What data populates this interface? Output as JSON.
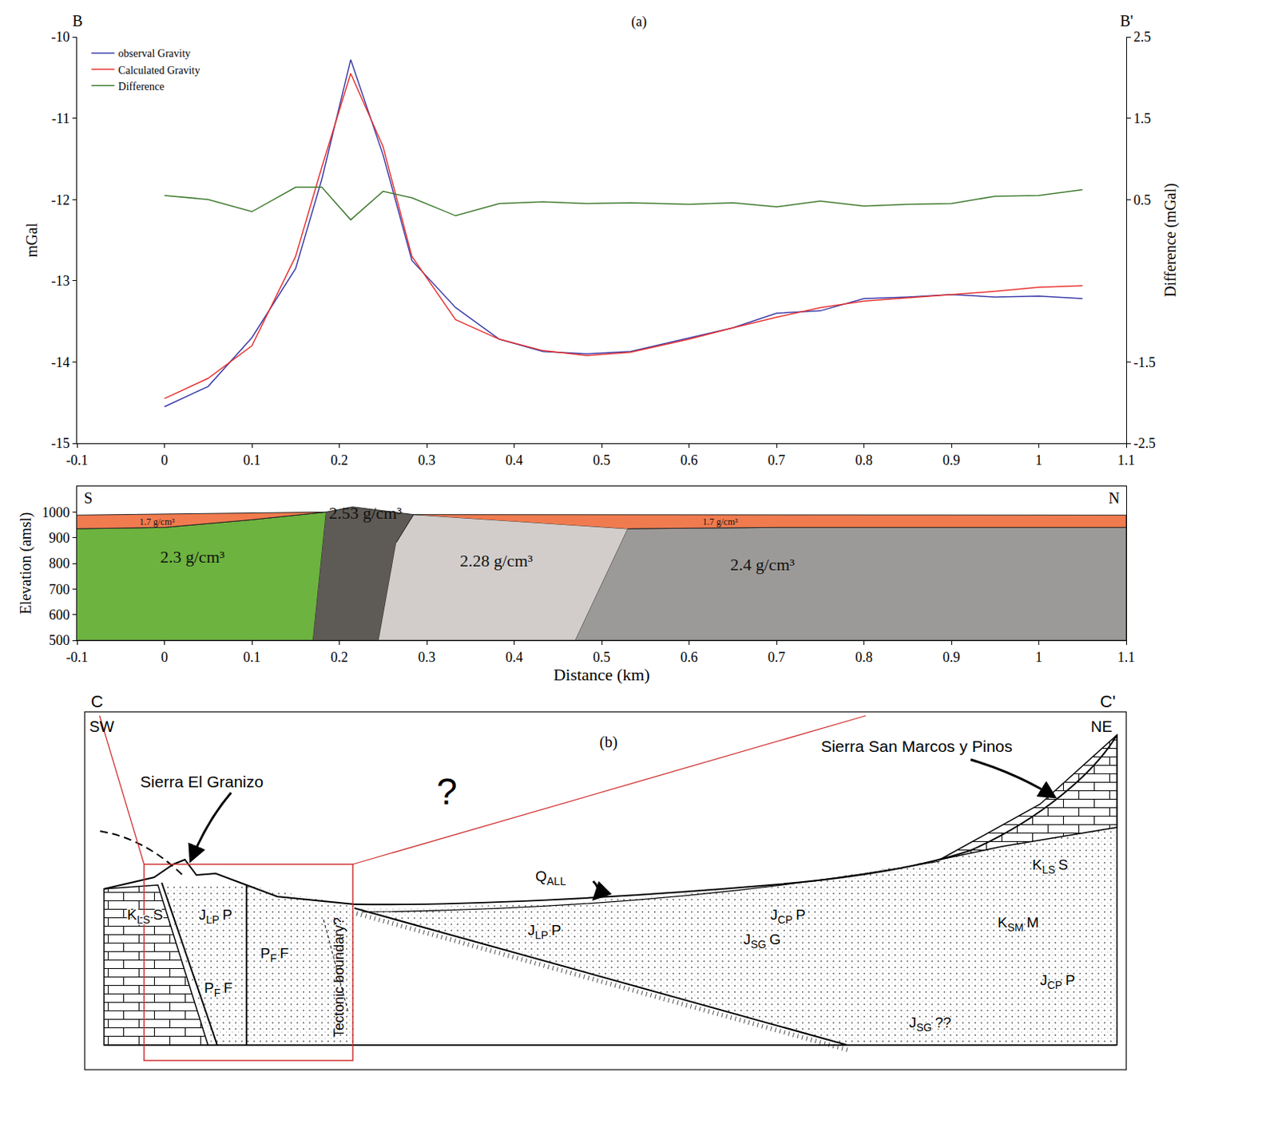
{
  "chart_data": [
    {
      "type": "line",
      "title": "(a)",
      "corner_labels": [
        "B",
        "B'"
      ],
      "ylabel": "mGal",
      "y2label": "Difference (mGal)",
      "x": [
        0,
        0.05,
        0.1,
        0.15,
        0.18,
        0.213,
        0.25,
        0.283,
        0.333,
        0.383,
        0.433,
        0.483,
        0.533,
        0.6,
        0.65,
        0.7,
        0.75,
        0.8,
        0.85,
        0.9,
        0.95,
        1.0,
        1.05
      ],
      "series": [
        {
          "name": "observal Gravity",
          "color": "#3a3aa8",
          "values": [
            -14.55,
            -14.3,
            -13.7,
            -12.85,
            -11.75,
            -10.28,
            -11.45,
            -12.75,
            -13.33,
            -13.72,
            -13.87,
            -13.9,
            -13.87,
            -13.7,
            -13.58,
            -13.4,
            -13.37,
            -13.22,
            -13.2,
            -13.17,
            -13.2,
            -13.19,
            -13.22
          ]
        },
        {
          "name": "Calculated Gravity",
          "color": "#e8312f",
          "values": [
            -14.45,
            -14.2,
            -13.8,
            -12.7,
            -11.6,
            -10.45,
            -11.35,
            -12.7,
            -13.48,
            -13.72,
            -13.86,
            -13.92,
            -13.88,
            -13.72,
            -13.58,
            -13.45,
            -13.33,
            -13.25,
            -13.21,
            -13.17,
            -13.13,
            -13.08,
            -13.06
          ]
        },
        {
          "name": "Difference",
          "color": "#3d7a2c",
          "axis": "y2",
          "values": [
            0.55,
            0.5,
            0.35,
            0.65,
            0.65,
            0.25,
            0.6,
            0.52,
            0.3,
            0.45,
            0.47,
            0.45,
            0.46,
            0.44,
            0.46,
            0.41,
            0.48,
            0.42,
            0.44,
            0.45,
            0.54,
            0.55,
            0.62
          ]
        }
      ],
      "xlim": [
        -0.1,
        1.1
      ],
      "xticks": [
        -0.1,
        0,
        0.1,
        0.2,
        0.3,
        0.4,
        0.5,
        0.6,
        0.7,
        0.8,
        0.9,
        1,
        1.1
      ],
      "ylim": [
        -15,
        -10
      ],
      "yticks": [
        -15,
        -14,
        -13,
        -12,
        -11,
        -10
      ],
      "y2lim": [
        -2.5,
        2.5
      ],
      "y2ticks": [
        -2.5,
        -1.5,
        0.5,
        1.5,
        2.5
      ],
      "grid": false,
      "legend": "upper left"
    },
    {
      "type": "area",
      "corner_labels": [
        "S",
        "N"
      ],
      "xlabel": "Distance (km)",
      "ylabel": "Elevation (amsl)",
      "xlim": [
        -0.1,
        1.1
      ],
      "xticks": [
        -0.1,
        0,
        0.1,
        0.2,
        0.3,
        0.4,
        0.5,
        0.6,
        0.7,
        0.8,
        0.9,
        1,
        1.1
      ],
      "ylim": [
        500,
        1100
      ],
      "yticks": [
        500,
        600,
        700,
        800,
        900,
        1000
      ],
      "grid": false,
      "bodies": [
        {
          "label": "2.3 g/cm³",
          "color": "#6db33f",
          "x": [
            -0.1,
            0.17,
            0.185,
            0.1,
            0,
            -0.1
          ],
          "y": [
            500,
            500,
            1000,
            970,
            940,
            935
          ],
          "label_position": [
            0.032,
            827
          ]
        },
        {
          "label": "2.53 g/cm³",
          "color": "#5e5a55",
          "x": [
            0.17,
            0.245,
            0.265,
            0.285,
            0.215,
            0.185
          ],
          "y": [
            500,
            500,
            880,
            990,
            1020,
            1000
          ],
          "label_position": [
            0.23,
            997
          ]
        },
        {
          "label": "2.28 g/cm³",
          "color": "#d2cdcb",
          "x": [
            0.245,
            0.47,
            0.53,
            0.285,
            0.265
          ],
          "y": [
            500,
            500,
            935,
            990,
            880
          ],
          "label_position": [
            0.38,
            810
          ]
        },
        {
          "label": "2.4 g/cm³",
          "color": "#9c9a98",
          "x": [
            0.47,
            1.1,
            1.1,
            0.7,
            0.53
          ],
          "y": [
            500,
            500,
            940,
            940,
            935
          ],
          "label_position": [
            0.684,
            795
          ]
        },
        {
          "label": "1.7 g/cm³",
          "color": "#f07b4f",
          "x": [
            -0.1,
            0.185,
            0.1,
            0,
            -0.1
          ],
          "y": [
            988,
            1000,
            970,
            940,
            935
          ],
          "label_position": [
            -0.008,
            962
          ]
        },
        {
          "label": "1.7 g/cm³",
          "color": "#f07b4f",
          "x": [
            0.285,
            1.1,
            1.1,
            0.7,
            0.53
          ],
          "y": [
            990,
            988,
            940,
            940,
            935
          ],
          "label_position": [
            0.636,
            962
          ]
        }
      ]
    }
  ],
  "cross_section": {
    "title": "(b)",
    "ends": [
      "C",
      "C'"
    ],
    "directions": [
      "SW",
      "NE"
    ],
    "places": [
      "Sierra El Granizo",
      "Sierra San Marcos y Pinos"
    ],
    "boundary": "Tectonic boundary?",
    "unknown": "?",
    "units": [
      {
        "base": "K",
        "sub": "LS",
        "tail": "S"
      },
      {
        "base": "J",
        "sub": "LP",
        "tail": "P"
      },
      {
        "base": "P",
        "sub": "F",
        "tail": "F"
      },
      {
        "base": "P",
        "sub": "F",
        "tail": "F"
      },
      {
        "base": "Q",
        "sub": "ALL"
      },
      {
        "base": "J",
        "sub": "LP",
        "tail": "P"
      },
      {
        "base": "J",
        "sub": "CP",
        "tail": "P"
      },
      {
        "base": "J",
        "sub": "SG",
        "tail": "G"
      },
      {
        "base": "K",
        "sub": "LS",
        "tail": "S"
      },
      {
        "base": "K",
        "sub": "SM",
        "tail": "M"
      },
      {
        "base": "J",
        "sub": "CP",
        "tail": "P"
      },
      {
        "base": "J",
        "sub": "SG",
        "tail": "??"
      }
    ]
  }
}
